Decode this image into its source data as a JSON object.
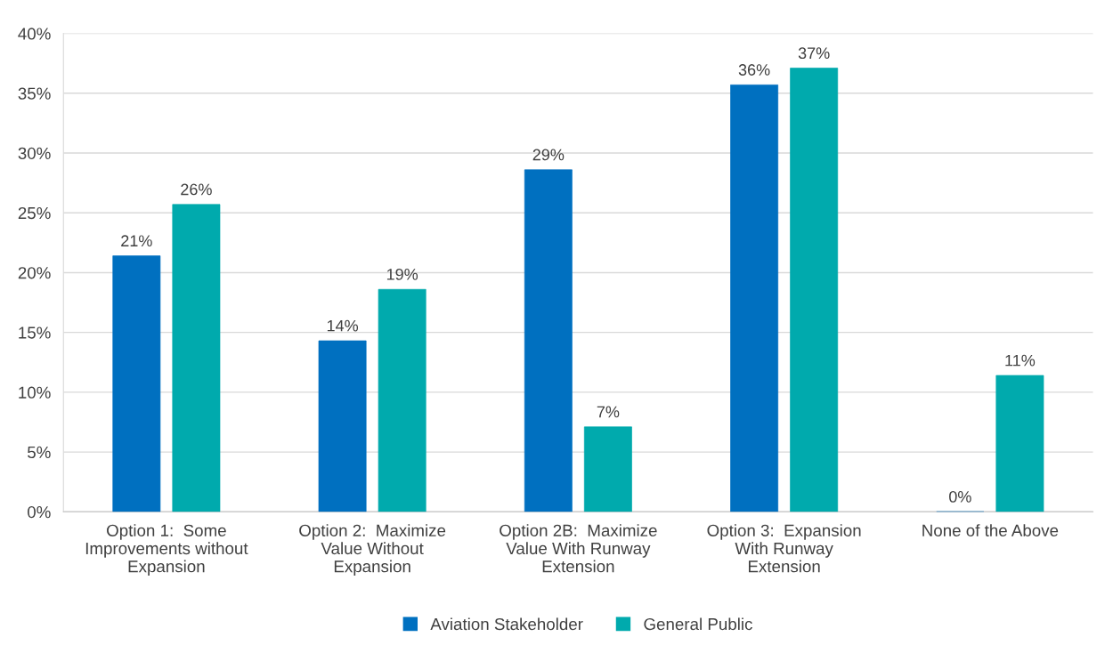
{
  "chart_data": {
    "type": "bar",
    "categories": [
      "Option 1:  Some\nImprovements without\nExpansion",
      "Option 2:  Maximize\nValue Without\nExpansion",
      "Option 2B:  Maximize\nValue With Runway\nExtension",
      "Option 3:  Expansion\nWith Runway\nExtension",
      "None of the Above"
    ],
    "series": [
      {
        "name": "Aviation Stakeholder",
        "color": "#0070c0",
        "values": [
          21.4,
          14.3,
          28.6,
          35.7,
          0
        ],
        "value_labels": [
          "21%",
          "14%",
          "29%",
          "36%",
          "0%"
        ]
      },
      {
        "name": "General Public",
        "color": "#00aaad",
        "values": [
          25.7,
          18.6,
          7.1,
          37.1,
          11.4
        ],
        "value_labels": [
          "26%",
          "19%",
          "7%",
          "37%",
          "11%"
        ]
      }
    ],
    "ylim": [
      0,
      40
    ],
    "yticks": [
      {
        "value": 0,
        "label": "0%"
      },
      {
        "value": 5,
        "label": "5%"
      },
      {
        "value": 10,
        "label": "10%"
      },
      {
        "value": 15,
        "label": "15%"
      },
      {
        "value": 20,
        "label": "20%"
      },
      {
        "value": 25,
        "label": "25%"
      },
      {
        "value": 30,
        "label": "30%"
      },
      {
        "value": 35,
        "label": "35%"
      },
      {
        "value": 40,
        "label": "40%"
      }
    ],
    "grid": "y",
    "legend": "bottom"
  }
}
